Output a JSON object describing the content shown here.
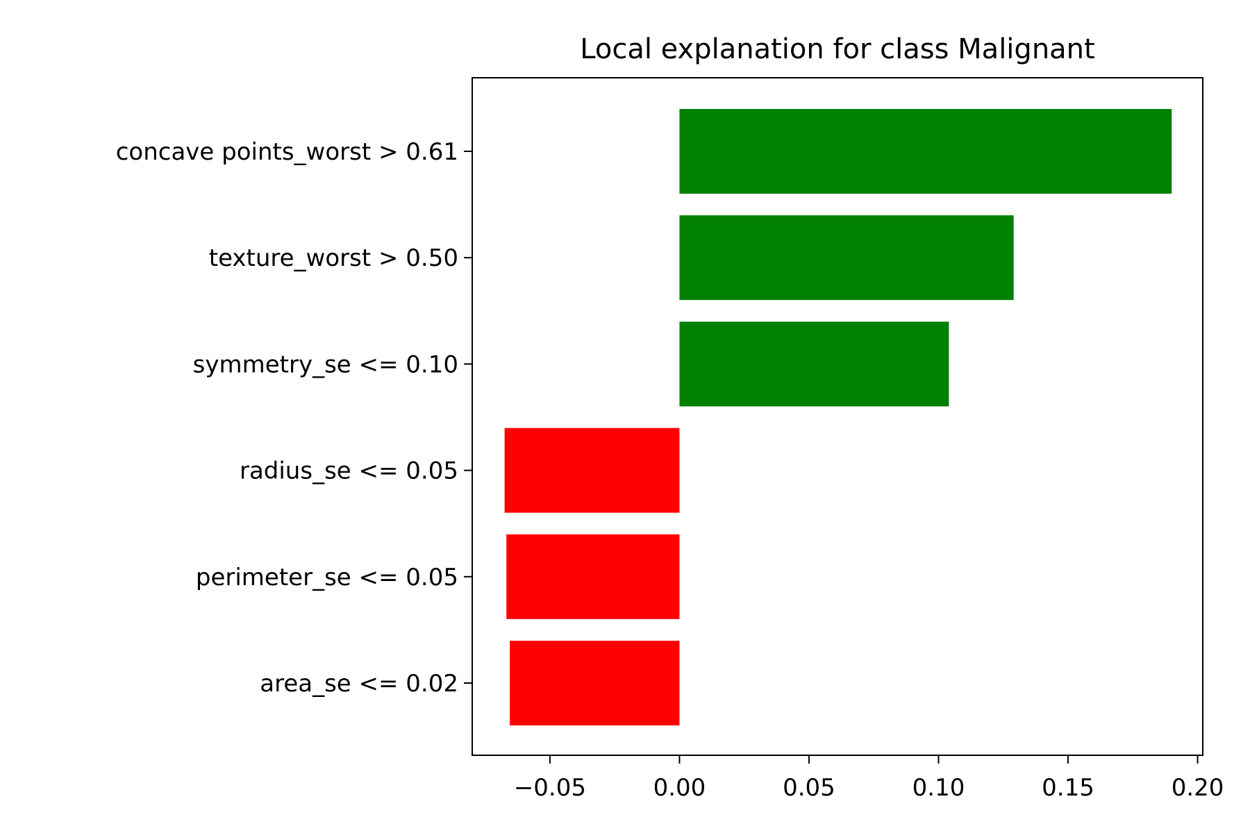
{
  "chart_data": {
    "type": "bar",
    "orientation": "horizontal",
    "title": "Local explanation for class Malignant",
    "xlabel": "",
    "ylabel": "",
    "categories": [
      "concave points_worst > 0.61",
      "texture_worst > 0.50",
      "symmetry_se <= 0.10",
      "radius_se <= 0.05",
      "perimeter_se <= 0.05",
      "area_se <= 0.02"
    ],
    "values": [
      0.19,
      0.129,
      0.104,
      -0.0675,
      -0.0668,
      -0.0655
    ],
    "xlim": [
      -0.08,
      0.202
    ],
    "x_ticks": [
      -0.05,
      0.0,
      0.05,
      0.1,
      0.15,
      0.2
    ],
    "x_tick_labels": [
      "−0.05",
      "0.00",
      "0.05",
      "0.10",
      "0.15",
      "0.20"
    ],
    "colors": {
      "positive": "#008000",
      "negative": "#ff0000",
      "axis": "#000000",
      "background": "#ffffff"
    },
    "grid": false,
    "legend": false
  }
}
